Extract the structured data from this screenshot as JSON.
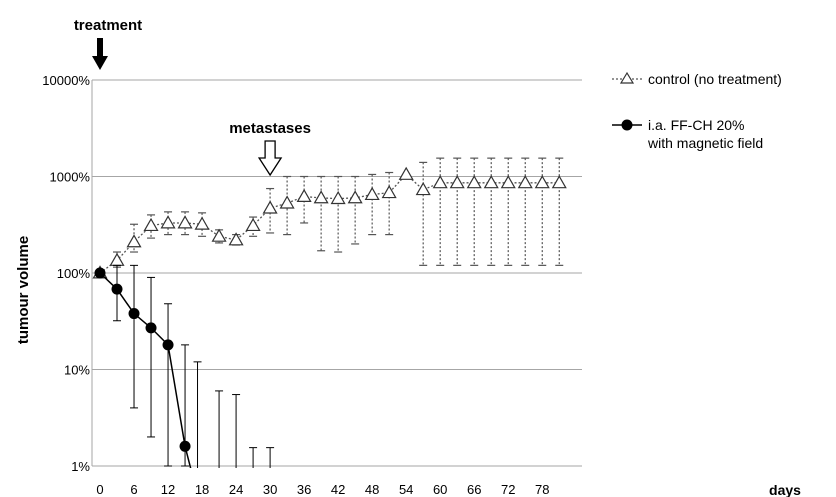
{
  "chart_data": {
    "type": "line",
    "xlabel": "days",
    "ylabel": "tumour volume",
    "yscale": "log",
    "ylim": [
      1,
      10000
    ],
    "xlim": [
      0,
      80
    ],
    "x_ticks": [
      0,
      6,
      12,
      18,
      24,
      30,
      36,
      42,
      48,
      54,
      60,
      66,
      72,
      78
    ],
    "x_tick_labels": [
      "0",
      "6",
      "12",
      "18",
      "24",
      "30",
      "36",
      "42",
      "48",
      "54",
      "60",
      "66",
      "72",
      "78"
    ],
    "y_ticks": [
      1,
      10,
      100,
      1000,
      10000
    ],
    "y_tick_labels": [
      "1%",
      "10%",
      "100%",
      "1000%",
      "10000%"
    ],
    "grid": "horizontal",
    "legend_position": "right",
    "annotations": [
      {
        "text": "treatment",
        "x": 0,
        "marker": "solid-down-arrow"
      },
      {
        "text": "metastases",
        "x": 30,
        "marker": "open-down-arrow"
      }
    ],
    "series": [
      {
        "name": "control (no treatment)",
        "color": "#555555",
        "line": "dotted",
        "marker": "open-triangle",
        "x": [
          0,
          3,
          6,
          9,
          12,
          15,
          18,
          21,
          24,
          27,
          30,
          33,
          36,
          39,
          42,
          45,
          48,
          51,
          54,
          57,
          60,
          63,
          66,
          69,
          72,
          75,
          78,
          81
        ],
        "y": [
          100,
          135,
          210,
          310,
          330,
          330,
          320,
          240,
          220,
          310,
          470,
          530,
          620,
          600,
          590,
          600,
          650,
          680,
          1050,
          730,
          860,
          860,
          860,
          860,
          860,
          860,
          860,
          860
        ],
        "err_low": [
          100,
          115,
          165,
          230,
          250,
          250,
          240,
          205,
          195,
          240,
          260,
          250,
          330,
          170,
          165,
          200,
          250,
          250,
          1050,
          120,
          120,
          120,
          120,
          120,
          120,
          120,
          120,
          120
        ],
        "err_high": [
          100,
          165,
          320,
          400,
          430,
          430,
          420,
          280,
          250,
          380,
          750,
          1000,
          1000,
          1000,
          1000,
          1000,
          1050,
          1100,
          1050,
          1400,
          1550,
          1550,
          1550,
          1550,
          1550,
          1550,
          1550,
          1550
        ]
      },
      {
        "name": "i.a. FF-CH 20%\nwith magnetic field",
        "name_lines": [
          "i.a. FF-CH 20%",
          "with magnetic field"
        ],
        "color": "#000000",
        "line": "solid",
        "marker": "filled-circle",
        "x": [
          0,
          3,
          6,
          9,
          12,
          15,
          17.2
        ],
        "y": [
          100,
          68,
          38,
          27,
          18,
          1.6,
          0.5
        ],
        "err_low": [
          100,
          32,
          4,
          2,
          1,
          1,
          null
        ],
        "err_high": [
          100,
          120,
          120,
          90,
          48,
          18,
          12
        ],
        "extra_err_high": [
          {
            "x": 21,
            "y": 6
          },
          {
            "x": 24,
            "y": 5.5
          },
          {
            "x": 27,
            "y": 1.55
          },
          {
            "x": 30,
            "y": 1.55
          }
        ]
      }
    ]
  }
}
